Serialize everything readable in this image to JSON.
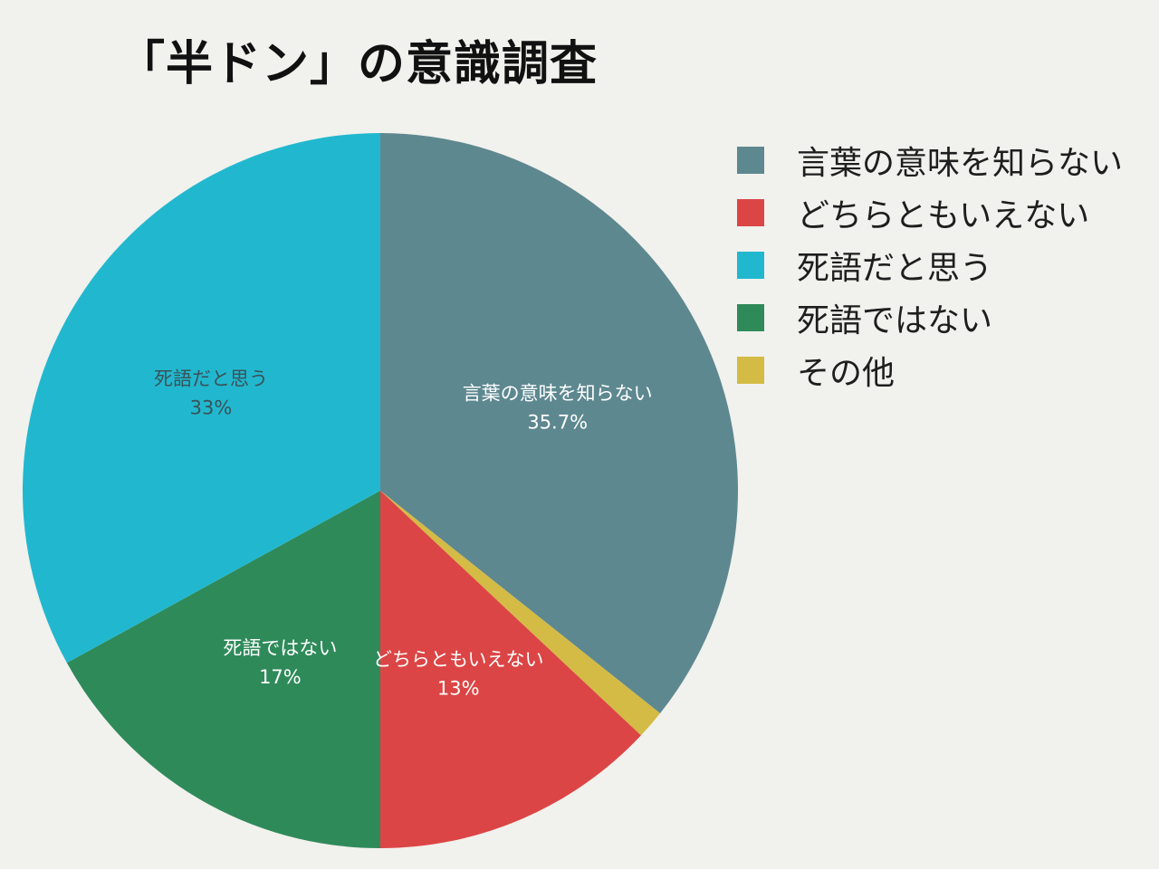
{
  "chart_data": {
    "type": "pie",
    "title": "「半ドン」の意識調査",
    "start": "top",
    "direction": "clockwise",
    "legend_position": "right",
    "slices": [
      {
        "label": "言葉の意味を知らない",
        "value": 35.7,
        "value_label": "35.7%",
        "color": "#5e8890",
        "label_color": "#ffffff",
        "show_label": true
      },
      {
        "label": "その他",
        "value": 1.3,
        "value_label": "",
        "color": "#d4bb45",
        "label_color": "#ffffff",
        "show_label": false
      },
      {
        "label": "どちらともいえない",
        "value": 13,
        "value_label": "13%",
        "color": "#dc4545",
        "label_color": "#ffffff",
        "show_label": true
      },
      {
        "label": "死語ではない",
        "value": 17,
        "value_label": "17%",
        "color": "#2f8a5a",
        "label_color": "#ffffff",
        "show_label": true
      },
      {
        "label": "死語だと思う",
        "value": 33,
        "value_label": "33%",
        "color": "#21b8cf",
        "label_color": "#3a5258",
        "show_label": true
      }
    ],
    "legend": [
      {
        "label": "言葉の意味を知らない",
        "color": "#5e8890"
      },
      {
        "label": "どちらともいえない",
        "color": "#dc4545"
      },
      {
        "label": "死語だと思う",
        "color": "#21b8cf"
      },
      {
        "label": "死語ではない",
        "color": "#2f8a5a"
      },
      {
        "label": "その他",
        "color": "#d4bb45"
      }
    ]
  }
}
